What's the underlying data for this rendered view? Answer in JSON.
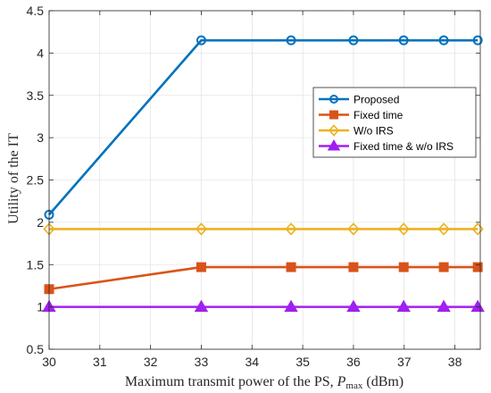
{
  "chart_data": {
    "type": "line",
    "title": "",
    "xlabel_main": "Maximum transmit power of the PS, ",
    "xlabel_var": "P",
    "xlabel_sub": "max",
    "xlabel_unit": " (dBm)",
    "ylabel": "Utility of the IT",
    "xlim": [
      30,
      38.5
    ],
    "ylim": [
      0.5,
      4.5
    ],
    "xticks": [
      30,
      31,
      32,
      33,
      34,
      35,
      36,
      37,
      38
    ],
    "yticks": [
      0.5,
      1,
      1.5,
      2,
      2.5,
      3,
      3.5,
      4,
      4.5
    ],
    "ytick_labels": [
      "0.5",
      "1",
      "1.5",
      "2",
      "2.5",
      "3",
      "3.5",
      "4",
      "4.5"
    ],
    "grid": true,
    "legend_position": "upper-right",
    "x": [
      30,
      33,
      34.77,
      36,
      36.99,
      37.78,
      38.45
    ],
    "series": [
      {
        "name": "Proposed",
        "color": "#0072BD",
        "marker": "circle",
        "values": [
          2.09,
          4.15,
          4.15,
          4.15,
          4.15,
          4.15,
          4.15
        ]
      },
      {
        "name": "Fixed time",
        "color": "#D95319",
        "marker": "square",
        "values": [
          1.21,
          1.47,
          1.47,
          1.47,
          1.47,
          1.47,
          1.47
        ]
      },
      {
        "name": "W/o IRS",
        "color": "#EDB120",
        "marker": "diamond",
        "values": [
          1.92,
          1.92,
          1.92,
          1.92,
          1.92,
          1.92,
          1.92
        ]
      },
      {
        "name": "Fixed time & w/o IRS",
        "color": "#A020F0",
        "marker": "triangle",
        "values": [
          1.0,
          1.0,
          1.0,
          1.0,
          1.0,
          1.0,
          1.0
        ]
      }
    ]
  }
}
